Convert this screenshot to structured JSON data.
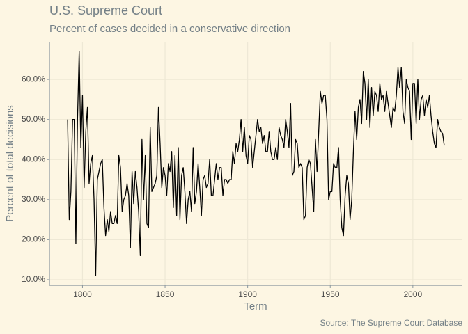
{
  "chart_data": {
    "type": "line",
    "title": "U.S. Supreme Court",
    "subtitle": "Percent of cases decided in a conservative direction",
    "x_label": "Term",
    "y_label": "Percent of total decisions",
    "caption": "Source: The Supreme Court Database",
    "x": [
      1791,
      1792,
      1793,
      1794,
      1795,
      1796,
      1797,
      1798,
      1799,
      1800,
      1801,
      1802,
      1803,
      1804,
      1805,
      1806,
      1807,
      1808,
      1809,
      1810,
      1811,
      1812,
      1813,
      1814,
      1815,
      1816,
      1817,
      1818,
      1819,
      1820,
      1821,
      1822,
      1823,
      1824,
      1825,
      1826,
      1827,
      1828,
      1829,
      1830,
      1831,
      1832,
      1833,
      1834,
      1835,
      1836,
      1837,
      1838,
      1839,
      1840,
      1841,
      1842,
      1843,
      1844,
      1845,
      1846,
      1847,
      1848,
      1849,
      1850,
      1851,
      1852,
      1853,
      1854,
      1855,
      1856,
      1857,
      1858,
      1859,
      1860,
      1861,
      1862,
      1863,
      1864,
      1865,
      1866,
      1867,
      1868,
      1869,
      1870,
      1871,
      1872,
      1873,
      1874,
      1875,
      1876,
      1877,
      1878,
      1879,
      1880,
      1881,
      1882,
      1883,
      1884,
      1885,
      1886,
      1887,
      1888,
      1889,
      1890,
      1891,
      1892,
      1893,
      1894,
      1895,
      1896,
      1897,
      1898,
      1899,
      1900,
      1901,
      1902,
      1903,
      1904,
      1905,
      1906,
      1907,
      1908,
      1909,
      1910,
      1911,
      1912,
      1913,
      1914,
      1915,
      1916,
      1917,
      1918,
      1919,
      1920,
      1921,
      1922,
      1923,
      1924,
      1925,
      1926,
      1927,
      1928,
      1929,
      1930,
      1931,
      1932,
      1933,
      1934,
      1935,
      1936,
      1937,
      1938,
      1939,
      1940,
      1941,
      1942,
      1943,
      1944,
      1945,
      1946,
      1947,
      1948,
      1949,
      1950,
      1951,
      1952,
      1953,
      1954,
      1955,
      1956,
      1957,
      1958,
      1959,
      1960,
      1961,
      1962,
      1963,
      1964,
      1965,
      1966,
      1967,
      1968,
      1969,
      1970,
      1971,
      1972,
      1973,
      1974,
      1975,
      1976,
      1977,
      1978,
      1979,
      1980,
      1981,
      1982,
      1983,
      1984,
      1985,
      1986,
      1987,
      1988,
      1989,
      1990,
      1991,
      1992,
      1993,
      1994,
      1995,
      1996,
      1997,
      1998,
      1999,
      2000,
      2001,
      2002,
      2003,
      2004,
      2005,
      2006,
      2007,
      2008,
      2009,
      2010,
      2011,
      2012,
      2013,
      2014,
      2015,
      2016,
      2017,
      2018,
      2019
    ],
    "values": [
      50,
      25,
      32,
      50,
      50,
      19,
      50,
      67,
      43,
      56,
      33,
      47,
      53,
      34,
      39,
      41,
      30,
      11,
      35,
      37,
      39,
      40,
      28,
      21,
      25,
      22,
      27,
      24,
      24,
      26,
      24,
      41,
      38,
      27,
      30,
      31,
      34,
      31,
      18,
      37,
      29,
      37,
      33,
      27,
      16,
      45,
      30,
      41,
      24,
      23,
      48,
      32,
      33,
      34,
      36,
      53,
      44,
      33,
      38,
      36,
      31,
      39,
      37,
      42,
      28,
      41,
      26,
      43,
      25,
      36,
      38,
      32,
      24,
      30,
      32,
      27,
      43,
      29,
      32,
      39,
      33,
      26,
      35,
      36,
      33,
      34,
      40,
      31,
      31,
      35,
      39,
      35,
      38,
      38,
      31,
      35,
      35,
      34,
      35,
      35,
      42,
      39,
      44,
      42,
      45,
      50,
      42,
      48,
      41,
      39,
      46,
      45,
      38,
      42,
      46,
      50,
      47,
      48,
      44,
      46,
      42,
      42,
      47,
      42,
      40,
      40,
      43,
      40,
      48,
      46,
      45,
      43,
      50,
      47,
      43,
      54,
      36,
      37,
      45,
      44,
      38,
      39,
      38,
      25,
      26,
      38,
      40,
      39,
      33,
      27,
      45,
      37,
      47,
      57,
      54,
      56,
      56,
      50,
      30,
      32,
      32,
      39,
      38,
      38,
      43,
      30,
      23,
      21,
      31,
      36,
      34,
      25,
      30,
      42,
      52,
      45,
      53,
      55,
      49,
      62,
      59,
      50,
      60,
      48,
      58,
      51,
      57,
      56,
      52,
      59,
      55,
      56,
      52,
      57,
      54,
      51,
      48,
      53,
      52,
      56,
      63,
      58,
      63,
      52,
      49,
      60,
      58,
      57,
      45,
      59,
      59,
      49,
      60,
      50,
      55,
      56,
      51,
      55,
      53,
      56,
      51,
      47,
      44,
      43,
      50,
      48,
      47,
      46.5,
      43.5
    ],
    "color": "#000000",
    "xlim": [
      1780,
      2030
    ],
    "xticks": [
      1800,
      1850,
      1900,
      1950,
      2000
    ],
    "ylim": [
      8.6,
      69.4
    ],
    "yticks": [
      {
        "value": 10,
        "label": "10.0%"
      },
      {
        "value": 20,
        "label": "20.0%"
      },
      {
        "value": 30,
        "label": "30.0%"
      },
      {
        "value": 40,
        "label": "40.0%"
      },
      {
        "value": 50,
        "label": "50.0%"
      },
      {
        "value": 60,
        "label": "60.0%"
      }
    ],
    "grid": true
  }
}
